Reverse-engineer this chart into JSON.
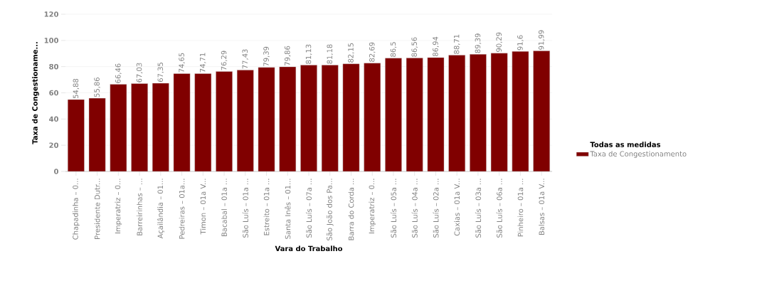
{
  "chart_data": {
    "type": "bar",
    "xlabel": "Vara do Trabalho",
    "ylabel": "Taxa de Congestioname...",
    "legend_title": "Todas as medidas",
    "categories": [
      "Chapadinha – 0...",
      "Presidente Dutr...",
      "Imperatriz – 0...",
      "Barreirinhas – ...",
      "Açailândia – 01...",
      "Pedreiras – 01a...",
      "Timon – 01a V...",
      "Bacabal – 01a ...",
      "São Luís – 01a ...",
      "Estreito – 01a ...",
      "Santa Inês – 01...",
      "São Luís – 07a ...",
      "São João dos Pa...",
      "Barra do Corda ...",
      "Imperatriz – 0...",
      "São Luís – 05a ...",
      "São Luís – 04a ...",
      "São Luís – 02a ...",
      "Caxias – 01a V...",
      "São Luís – 03a ...",
      "São Luís – 06a ...",
      "Pinheiro – 01a ...",
      "Balsas – 01a V..."
    ],
    "series": [
      {
        "name": "Taxa de Congestionamento",
        "color": "#800000",
        "values": [
          54.88,
          55.86,
          66.46,
          67.03,
          67.35,
          74.65,
          74.71,
          76.29,
          77.43,
          79.39,
          79.86,
          81.13,
          81.18,
          82.15,
          82.69,
          86.5,
          86.56,
          86.94,
          88.71,
          89.39,
          90.29,
          91.6,
          91.99
        ],
        "value_labels": [
          "54,88",
          "55,86",
          "66,46",
          "67,03",
          "67,35",
          "74,65",
          "74,71",
          "76,29",
          "77,43",
          "79,39",
          "79,86",
          "81,13",
          "81,18",
          "82,15",
          "82,69",
          "86,5",
          "86,56",
          "86,94",
          "88,71",
          "89,39",
          "90,29",
          "91,6",
          "91,99"
        ]
      }
    ],
    "ylim": [
      0,
      120
    ],
    "yticks": [
      0,
      20,
      40,
      60,
      80,
      100,
      120
    ],
    "grid": "y",
    "legend": "right"
  }
}
